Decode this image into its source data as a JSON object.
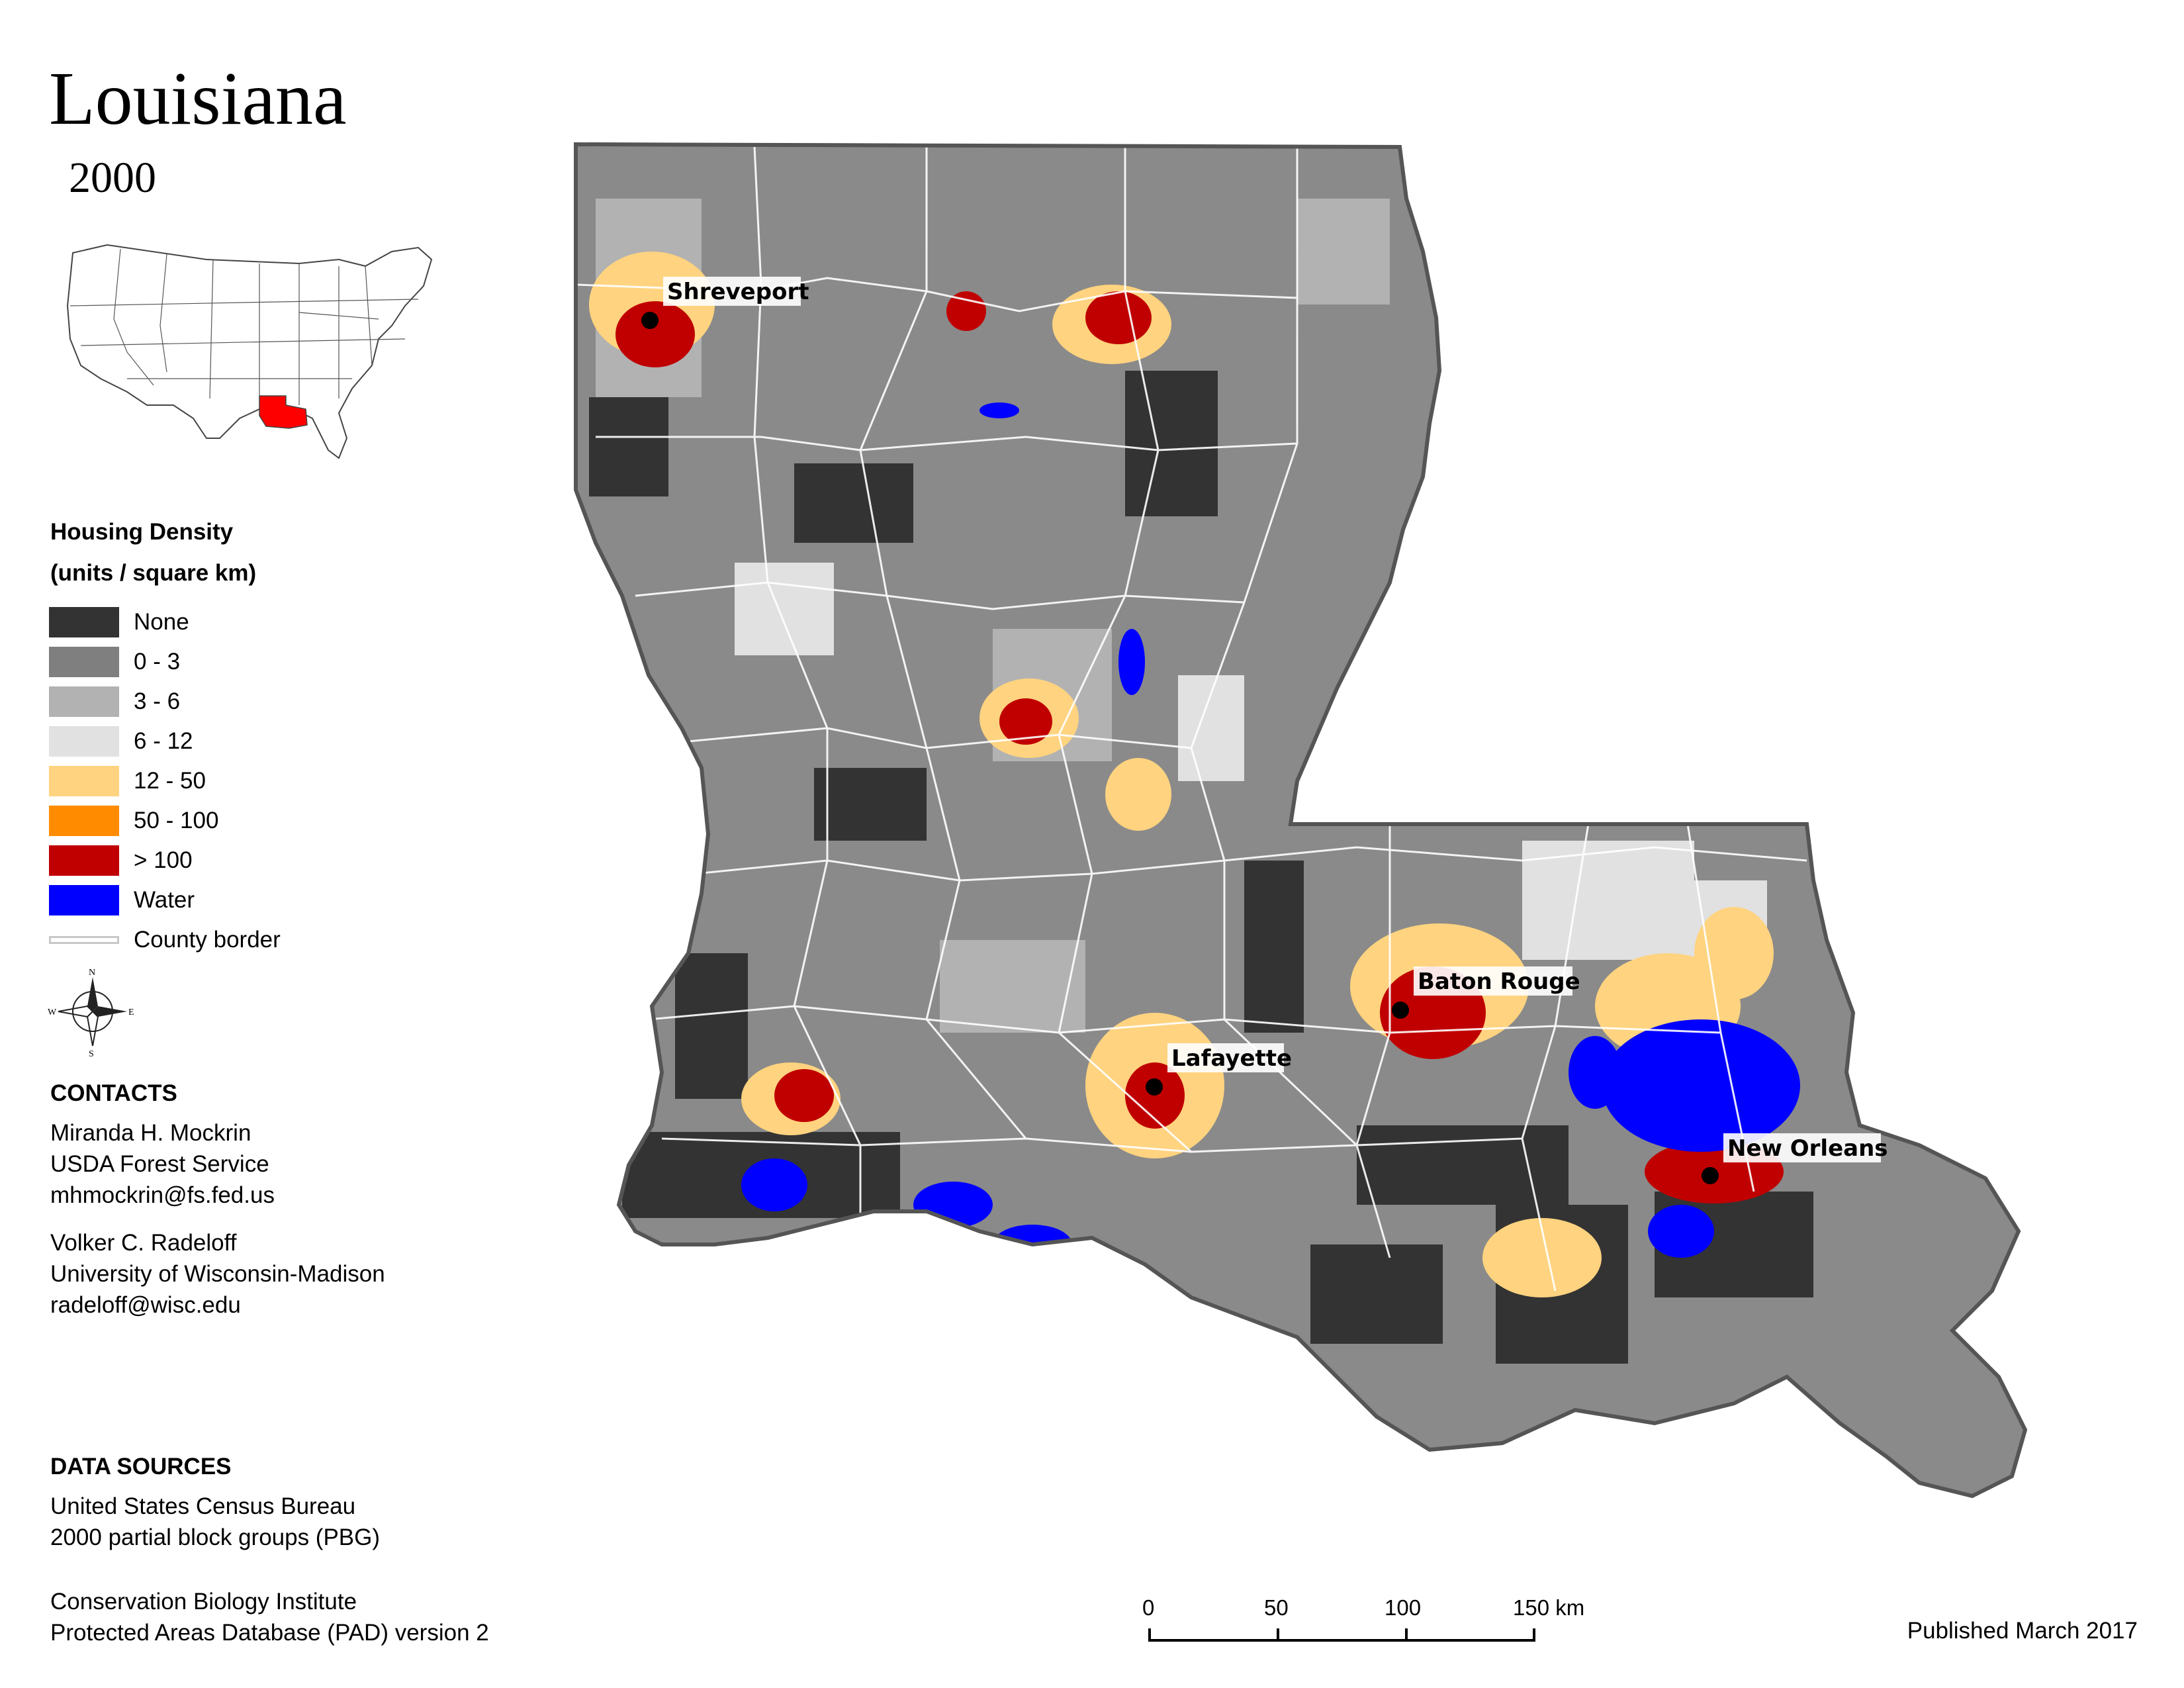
{
  "title": "Louisiana",
  "year": "2000",
  "legend": {
    "title": "Housing Density",
    "units": "(units / square km)",
    "items": [
      {
        "label": "None",
        "color": "#333333"
      },
      {
        "label": "0 - 3",
        "color": "#7f7f7f"
      },
      {
        "label": "3 - 6",
        "color": "#b2b2b2"
      },
      {
        "label": "6 - 12",
        "color": "#e1e1e1"
      },
      {
        "label": "12 - 50",
        "color": "#ffd37f"
      },
      {
        "label": "50 - 100",
        "color": "#ff8c00"
      },
      {
        "label": "> 100",
        "color": "#c00000"
      },
      {
        "label": "Water",
        "color": "#0000ff"
      }
    ],
    "border_label": "County border"
  },
  "compass": {
    "n": "N",
    "s": "S",
    "e": "E",
    "w": "W"
  },
  "contacts": {
    "title": "CONTACTS",
    "people": [
      {
        "name": "Miranda H. Mockrin",
        "org": "USDA Forest Service",
        "email": "mhmockrin@fs.fed.us"
      },
      {
        "name": "Volker C. Radeloff",
        "org": "University of Wisconsin-Madison",
        "email": "radeloff@wisc.edu"
      }
    ]
  },
  "data_sources": {
    "title": "DATA SOURCES",
    "sources": [
      {
        "line1": "United States Census Bureau",
        "line2": "2000 partial block groups (PBG)"
      },
      {
        "line1": "Conservation Biology Institute",
        "line2": "Protected Areas Database (PAD) version 2"
      }
    ]
  },
  "scale": {
    "ticks": [
      "0",
      "50",
      "100",
      "150 km"
    ]
  },
  "cities": [
    {
      "name": "Shreveport"
    },
    {
      "name": "Baton Rouge"
    },
    {
      "name": "Lafayette"
    },
    {
      "name": "New Orleans"
    }
  ],
  "published": "Published March 2017"
}
